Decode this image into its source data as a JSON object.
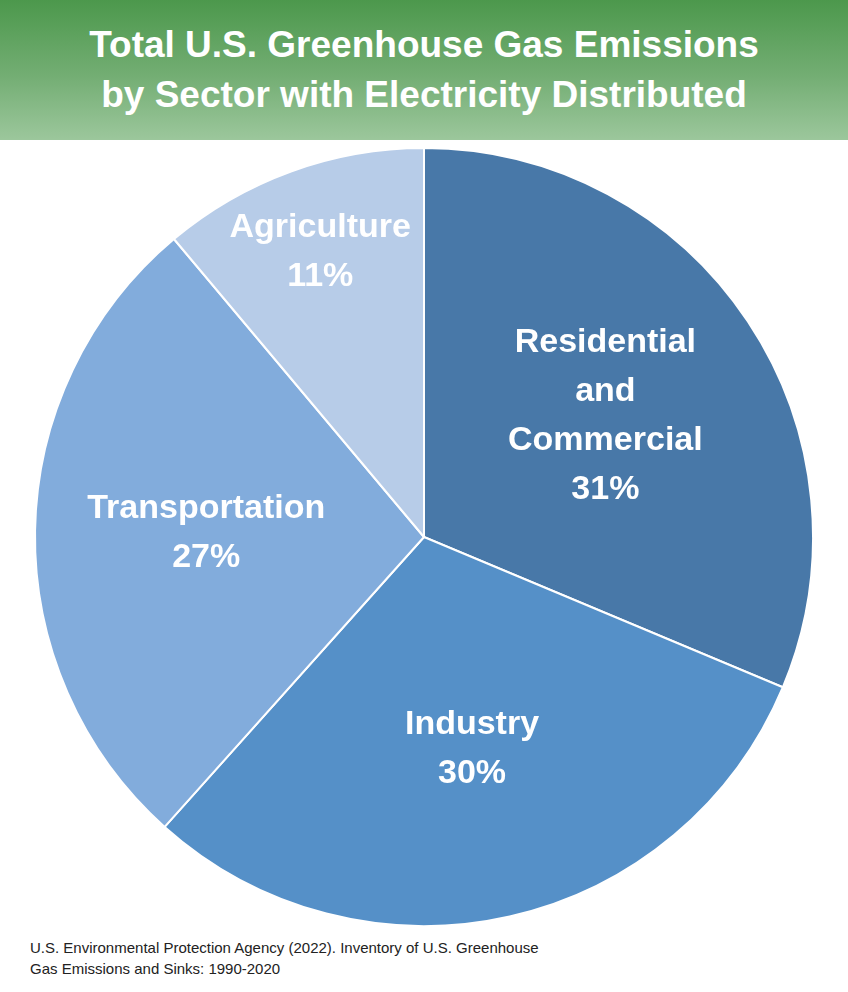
{
  "chart_data": {
    "type": "pie",
    "title": "Total U.S. Greenhouse Gas Emissions by Sector with Electricity Distributed",
    "categories": [
      "Residential and Commercial",
      "Industry",
      "Transportation",
      "Agriculture"
    ],
    "values": [
      31,
      30,
      27,
      11
    ],
    "value_labels": [
      "31%",
      "30%",
      "27%",
      "11%"
    ],
    "colors": [
      "#4878a8",
      "#5590c8",
      "#82acdc",
      "#b7cce8"
    ],
    "data_labels": true,
    "source": "U.S. Environmental Protection Agency (2022). Inventory of U.S. Greenhouse Gas Emissions and Sinks: 1990-2020"
  }
}
